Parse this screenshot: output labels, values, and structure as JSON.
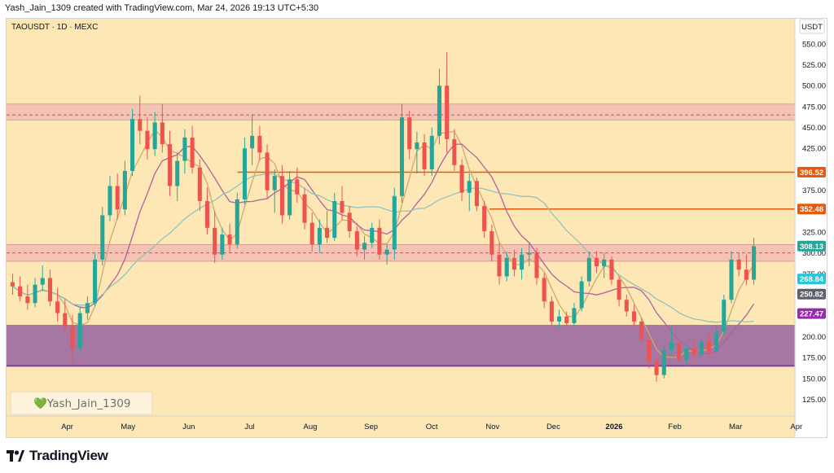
{
  "header": {
    "attribution": "Yash_Jain_1309 created with TradingView.com, Mar 24, 2026 19:13 UTC+5:30"
  },
  "symbol_label": "TAOUSDT · 1D · MEXC",
  "currency": "USDT",
  "watermark": "💚Yash_Jain_1309",
  "brand": "TradingView",
  "colors": {
    "background": "#fde7b4",
    "zone_fill": "#efb7b4",
    "zone_line": "#c05863",
    "support_fill": "#9b6aa0",
    "support_line": "#7b3fa6",
    "level_line": "#e8590c",
    "up": "#26a69a",
    "down": "#ef5350",
    "ma_fast": "#d2a86a",
    "ma_mid": "#b45fa0",
    "ma_slow": "#8fc4bd"
  },
  "chart_data": {
    "type": "candlestick",
    "title": "TAOUSDT · 1D · MEXC",
    "ylim": [
      105,
      580
    ],
    "yticks": [
      125,
      150,
      175,
      200,
      225,
      250,
      275,
      300,
      325,
      350,
      375,
      400,
      425,
      450,
      475,
      500,
      525,
      550
    ],
    "x_labels": [
      "Apr",
      "May",
      "Jun",
      "Jul",
      "Aug",
      "Sep",
      "Oct",
      "Nov",
      "Dec",
      "2026",
      "Feb",
      "Mar",
      "Apr"
    ],
    "x_label_months": [
      1,
      2,
      3,
      4,
      5,
      6,
      7,
      8,
      9,
      10,
      11,
      12,
      13
    ],
    "month_start_values": [
      265,
      255,
      440,
      435,
      300,
      410,
      360,
      330,
      490,
      290,
      225,
      175,
      200,
      300
    ],
    "zones": [
      {
        "name": "resistance",
        "low": 459,
        "high": 478,
        "mid": 465
      },
      {
        "name": "mid",
        "low": 290,
        "high": 310,
        "mid": 300
      },
      {
        "name": "support",
        "low": 165,
        "high": 214
      }
    ],
    "levels": [
      {
        "value": 396.52,
        "start_month": 3.8
      },
      {
        "value": 352.48,
        "start_month": 7.95
      }
    ],
    "price_tags": [
      {
        "value": 396.52,
        "label": "396.52",
        "color": "#e8590c"
      },
      {
        "value": 352.48,
        "label": "352.48",
        "color": "#e8590c"
      },
      {
        "value": 308.13,
        "label": "308.13",
        "color": "#26a69a"
      },
      {
        "value": 268.84,
        "label": "268.84",
        "color": "#26c6da"
      },
      {
        "value": 250.82,
        "label": "250.82",
        "color": "#5d606b"
      },
      {
        "value": 227.47,
        "label": "227.47",
        "color": "#9c27b0"
      }
    ],
    "candles": [
      {
        "o": 265,
        "h": 275,
        "l": 250,
        "c": 260
      },
      {
        "o": 260,
        "h": 272,
        "l": 242,
        "c": 248
      },
      {
        "o": 248,
        "h": 262,
        "l": 232,
        "c": 240
      },
      {
        "o": 240,
        "h": 270,
        "l": 235,
        "c": 262
      },
      {
        "o": 262,
        "h": 285,
        "l": 255,
        "c": 270
      },
      {
        "o": 270,
        "h": 280,
        "l": 236,
        "c": 242
      },
      {
        "o": 242,
        "h": 258,
        "l": 218,
        "c": 228
      },
      {
        "o": 228,
        "h": 245,
        "l": 205,
        "c": 212
      },
      {
        "o": 212,
        "h": 226,
        "l": 170,
        "c": 186
      },
      {
        "o": 186,
        "h": 236,
        "l": 180,
        "c": 228
      },
      {
        "o": 228,
        "h": 248,
        "l": 220,
        "c": 240
      },
      {
        "o": 240,
        "h": 300,
        "l": 236,
        "c": 292
      },
      {
        "o": 292,
        "h": 355,
        "l": 285,
        "c": 345
      },
      {
        "o": 345,
        "h": 392,
        "l": 338,
        "c": 380
      },
      {
        "o": 380,
        "h": 395,
        "l": 340,
        "c": 352
      },
      {
        "o": 352,
        "h": 410,
        "l": 345,
        "c": 398
      },
      {
        "o": 398,
        "h": 472,
        "l": 392,
        "c": 460
      },
      {
        "o": 460,
        "h": 488,
        "l": 430,
        "c": 446
      },
      {
        "o": 446,
        "h": 462,
        "l": 412,
        "c": 424
      },
      {
        "o": 424,
        "h": 468,
        "l": 416,
        "c": 456
      },
      {
        "o": 456,
        "h": 478,
        "l": 420,
        "c": 430
      },
      {
        "o": 430,
        "h": 446,
        "l": 368,
        "c": 380
      },
      {
        "o": 380,
        "h": 420,
        "l": 362,
        "c": 410
      },
      {
        "o": 410,
        "h": 448,
        "l": 395,
        "c": 438
      },
      {
        "o": 438,
        "h": 452,
        "l": 395,
        "c": 402
      },
      {
        "o": 402,
        "h": 412,
        "l": 350,
        "c": 362
      },
      {
        "o": 362,
        "h": 378,
        "l": 322,
        "c": 330
      },
      {
        "o": 330,
        "h": 350,
        "l": 288,
        "c": 298
      },
      {
        "o": 298,
        "h": 330,
        "l": 292,
        "c": 322
      },
      {
        "o": 322,
        "h": 335,
        "l": 300,
        "c": 310
      },
      {
        "o": 310,
        "h": 372,
        "l": 305,
        "c": 364
      },
      {
        "o": 364,
        "h": 438,
        "l": 358,
        "c": 425
      },
      {
        "o": 425,
        "h": 466,
        "l": 405,
        "c": 440
      },
      {
        "o": 440,
        "h": 452,
        "l": 410,
        "c": 420
      },
      {
        "o": 420,
        "h": 430,
        "l": 365,
        "c": 375
      },
      {
        "o": 375,
        "h": 400,
        "l": 348,
        "c": 392
      },
      {
        "o": 392,
        "h": 405,
        "l": 335,
        "c": 345
      },
      {
        "o": 345,
        "h": 398,
        "l": 340,
        "c": 388
      },
      {
        "o": 388,
        "h": 402,
        "l": 360,
        "c": 370
      },
      {
        "o": 370,
        "h": 378,
        "l": 328,
        "c": 336
      },
      {
        "o": 336,
        "h": 348,
        "l": 302,
        "c": 310
      },
      {
        "o": 310,
        "h": 340,
        "l": 300,
        "c": 330
      },
      {
        "o": 330,
        "h": 350,
        "l": 312,
        "c": 318
      },
      {
        "o": 318,
        "h": 372,
        "l": 314,
        "c": 362
      },
      {
        "o": 362,
        "h": 380,
        "l": 340,
        "c": 348
      },
      {
        "o": 348,
        "h": 356,
        "l": 318,
        "c": 326
      },
      {
        "o": 326,
        "h": 332,
        "l": 296,
        "c": 304
      },
      {
        "o": 304,
        "h": 320,
        "l": 292,
        "c": 312
      },
      {
        "o": 312,
        "h": 336,
        "l": 306,
        "c": 330
      },
      {
        "o": 330,
        "h": 340,
        "l": 292,
        "c": 298
      },
      {
        "o": 298,
        "h": 310,
        "l": 286,
        "c": 304
      },
      {
        "o": 304,
        "h": 378,
        "l": 292,
        "c": 368
      },
      {
        "o": 368,
        "h": 478,
        "l": 360,
        "c": 462
      },
      {
        "o": 462,
        "h": 470,
        "l": 412,
        "c": 424
      },
      {
        "o": 424,
        "h": 445,
        "l": 395,
        "c": 432
      },
      {
        "o": 432,
        "h": 442,
        "l": 392,
        "c": 400
      },
      {
        "o": 400,
        "h": 450,
        "l": 392,
        "c": 440
      },
      {
        "o": 440,
        "h": 520,
        "l": 430,
        "c": 500
      },
      {
        "o": 500,
        "h": 540,
        "l": 420,
        "c": 436
      },
      {
        "o": 436,
        "h": 448,
        "l": 398,
        "c": 405
      },
      {
        "o": 405,
        "h": 412,
        "l": 362,
        "c": 372
      },
      {
        "o": 372,
        "h": 395,
        "l": 350,
        "c": 386
      },
      {
        "o": 386,
        "h": 390,
        "l": 350,
        "c": 356
      },
      {
        "o": 356,
        "h": 362,
        "l": 318,
        "c": 326
      },
      {
        "o": 326,
        "h": 334,
        "l": 290,
        "c": 298
      },
      {
        "o": 298,
        "h": 312,
        "l": 262,
        "c": 272
      },
      {
        "o": 272,
        "h": 302,
        "l": 266,
        "c": 294
      },
      {
        "o": 294,
        "h": 304,
        "l": 272,
        "c": 280
      },
      {
        "o": 280,
        "h": 306,
        "l": 268,
        "c": 298
      },
      {
        "o": 298,
        "h": 312,
        "l": 284,
        "c": 300
      },
      {
        "o": 300,
        "h": 306,
        "l": 262,
        "c": 270
      },
      {
        "o": 270,
        "h": 276,
        "l": 234,
        "c": 242
      },
      {
        "o": 242,
        "h": 248,
        "l": 212,
        "c": 218
      },
      {
        "o": 218,
        "h": 232,
        "l": 210,
        "c": 224
      },
      {
        "o": 224,
        "h": 230,
        "l": 210,
        "c": 216
      },
      {
        "o": 216,
        "h": 240,
        "l": 212,
        "c": 234
      },
      {
        "o": 234,
        "h": 272,
        "l": 230,
        "c": 266
      },
      {
        "o": 266,
        "h": 302,
        "l": 260,
        "c": 294
      },
      {
        "o": 294,
        "h": 302,
        "l": 276,
        "c": 284
      },
      {
        "o": 284,
        "h": 300,
        "l": 270,
        "c": 292
      },
      {
        "o": 292,
        "h": 296,
        "l": 262,
        "c": 268
      },
      {
        "o": 268,
        "h": 272,
        "l": 236,
        "c": 244
      },
      {
        "o": 244,
        "h": 250,
        "l": 224,
        "c": 230
      },
      {
        "o": 230,
        "h": 238,
        "l": 212,
        "c": 218
      },
      {
        "o": 218,
        "h": 222,
        "l": 190,
        "c": 196
      },
      {
        "o": 196,
        "h": 200,
        "l": 162,
        "c": 170
      },
      {
        "o": 170,
        "h": 176,
        "l": 146,
        "c": 154
      },
      {
        "o": 154,
        "h": 190,
        "l": 150,
        "c": 184
      },
      {
        "o": 184,
        "h": 212,
        "l": 178,
        "c": 192
      },
      {
        "o": 192,
        "h": 200,
        "l": 166,
        "c": 172
      },
      {
        "o": 172,
        "h": 190,
        "l": 164,
        "c": 186
      },
      {
        "o": 186,
        "h": 196,
        "l": 172,
        "c": 178
      },
      {
        "o": 178,
        "h": 198,
        "l": 174,
        "c": 194
      },
      {
        "o": 194,
        "h": 202,
        "l": 176,
        "c": 182
      },
      {
        "o": 182,
        "h": 212,
        "l": 180,
        "c": 206
      },
      {
        "o": 206,
        "h": 250,
        "l": 202,
        "c": 244
      },
      {
        "o": 244,
        "h": 302,
        "l": 240,
        "c": 292
      },
      {
        "o": 292,
        "h": 300,
        "l": 272,
        "c": 280
      },
      {
        "o": 280,
        "h": 298,
        "l": 262,
        "c": 268
      },
      {
        "o": 268,
        "h": 318,
        "l": 262,
        "c": 308
      }
    ]
  }
}
